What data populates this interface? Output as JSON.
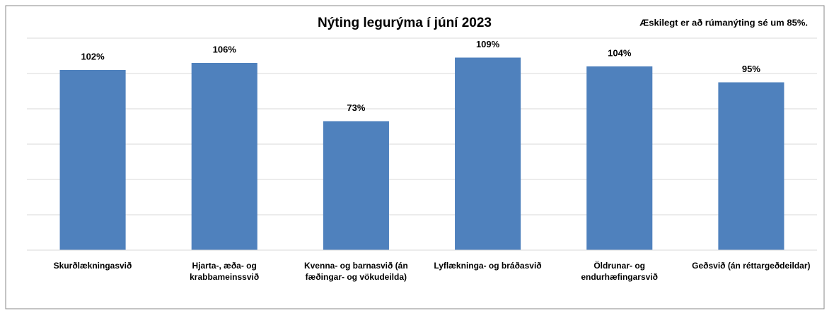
{
  "chart_data": {
    "type": "bar",
    "title": "Nýting legurýma í júní 2023",
    "annotation": "Æskilegt er að rúmanýting sé um 85%.",
    "categories": [
      "Skurðlækningasvið",
      "Hjarta-, æða- og\nkrabbameinssvið",
      "Kvenna- og barnasvið (án\nfæðingar- og vökudeilda)",
      "Lyflækninga- og bráðasvið",
      "Öldrunar- og\nendurhæfingarsvið",
      "Geðsvið (án réttargeðdeildar)"
    ],
    "values": [
      102,
      106,
      73,
      109,
      104,
      95
    ],
    "value_labels": [
      "102%",
      "106%",
      "73%",
      "109%",
      "104%",
      "95%"
    ],
    "color": "#4f81bd",
    "ylim": [
      0,
      120
    ],
    "yticks": [
      0,
      20,
      40,
      60,
      80,
      100,
      120
    ],
    "grid": true
  }
}
